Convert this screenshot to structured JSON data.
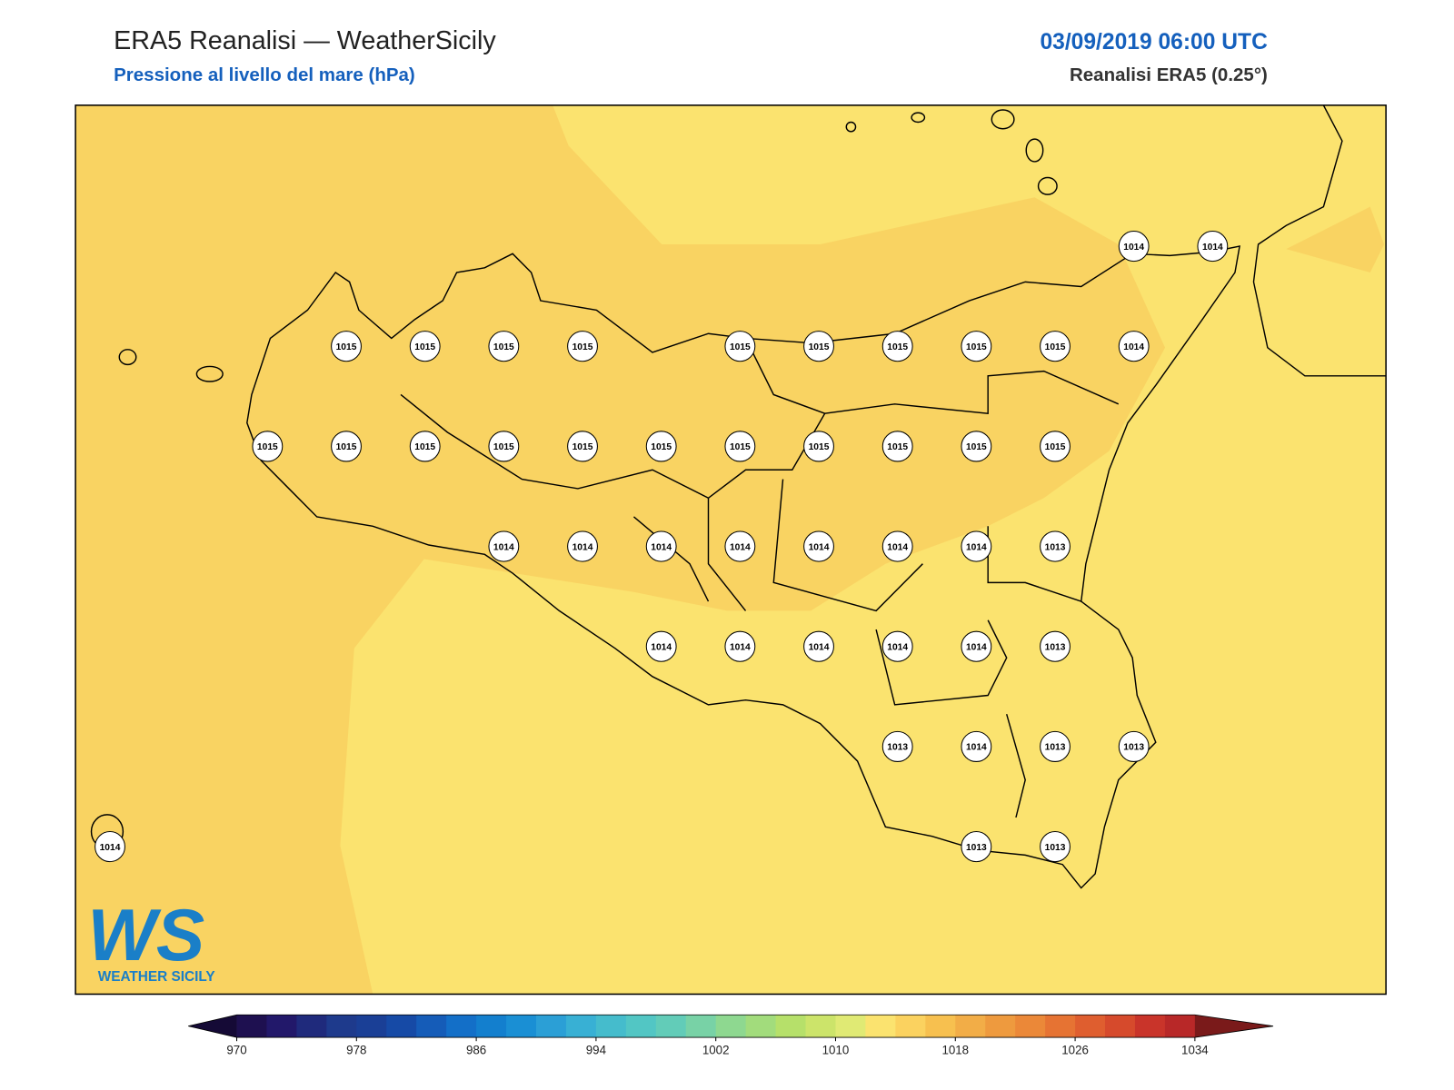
{
  "header": {
    "title": "ERA5 Reanalisi — WeatherSicily",
    "subtitle": "Pressione al livello del mare (hPa)",
    "date": "03/09/2019 06:00 UTC",
    "source": "Reanalisi ERA5 (0.25°)"
  },
  "stations": [
    [
      1014,
      1014
    ],
    [
      1015,
      1015,
      1015,
      1015,
      1015,
      1015,
      1015,
      1015,
      1015,
      1014
    ],
    [
      1015,
      1015,
      1015,
      1015,
      1015,
      1015,
      1015,
      1015,
      1015,
      1015,
      1015
    ],
    [
      1014,
      1014,
      1014,
      1014,
      1014,
      1014,
      1014,
      1013
    ],
    [
      1014,
      1014,
      1014,
      1014,
      1014,
      1013
    ],
    [
      1013,
      1014,
      1013,
      1013
    ],
    [
      1014,
      1013,
      1013
    ]
  ],
  "colorbar": {
    "lim": [
      970,
      1034
    ],
    "step": 2,
    "ticks": [
      970,
      978,
      986,
      994,
      1002,
      1010,
      1018,
      1026,
      1034
    ],
    "colors": [
      "#1e1050",
      "#22186a",
      "#1f2a7c",
      "#1e3a8c",
      "#1a3f96",
      "#164aa6",
      "#155cb8",
      "#136fc8",
      "#137fce",
      "#1a8fd4",
      "#2b9fd6",
      "#38b0d4",
      "#45bccc",
      "#52c6c4",
      "#62ccb8",
      "#78d2a6",
      "#8ed890",
      "#a2dc7c",
      "#b6e06a",
      "#cce46a",
      "#e0ea74",
      "#fbe36f",
      "#fbd25f",
      "#f7c04f",
      "#f2ad47",
      "#ee9a3e",
      "#eb8838",
      "#e67333",
      "#df5e2f",
      "#d64a2c",
      "#c9342a",
      "#b82828"
    ],
    "extend_colors": [
      "#150a36",
      "#7a1a1a"
    ]
  },
  "logo": {
    "mark": "WS",
    "name": "WEATHER SICILY"
  }
}
